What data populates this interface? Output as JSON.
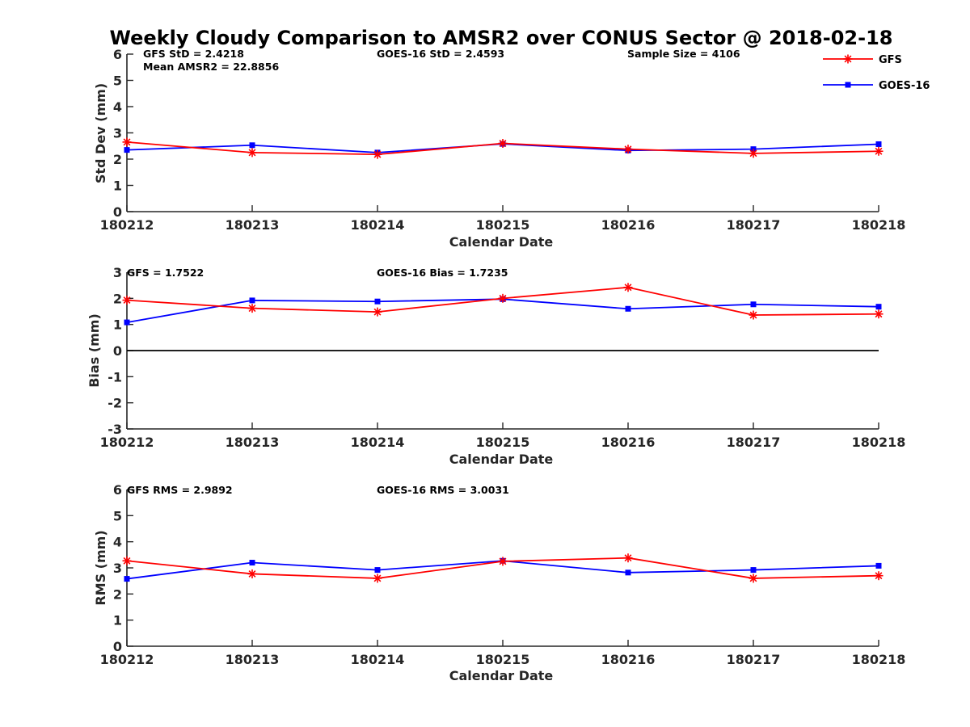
{
  "figure": {
    "title": "Weekly Cloudy Comparison to AMSR2 over CONUS Sector @ 2018-02-18",
    "legend": [
      {
        "name": "GFS",
        "color": "#ff0000",
        "marker": "asterisk"
      },
      {
        "name": "GOES-16",
        "color": "#0000ff",
        "marker": "square"
      }
    ],
    "legend_placement": "top-right"
  },
  "chart_data": [
    {
      "type": "line",
      "x": [
        "180212",
        "180213",
        "180214",
        "180215",
        "180216",
        "180217",
        "180218"
      ],
      "xlabel": "Calendar Date",
      "ylabel": "Std Dev (mm)",
      "ylim": [
        0,
        6
      ],
      "yticks": [
        "0",
        "1",
        "2",
        "3",
        "4",
        "5",
        "6"
      ],
      "grid": false,
      "series": [
        {
          "name": "GFS",
          "color": "#ff0000",
          "values": [
            2.65,
            2.25,
            2.18,
            2.6,
            2.38,
            2.22,
            2.3
          ]
        },
        {
          "name": "GOES-16",
          "color": "#0000ff",
          "values": [
            2.35,
            2.53,
            2.25,
            2.58,
            2.33,
            2.38,
            2.57
          ]
        }
      ],
      "annotations": [
        {
          "text": "GFS StD = 2.4218",
          "anchor": "tl"
        },
        {
          "text": "Mean AMSR2 = 22.8856",
          "anchor": "tl2"
        },
        {
          "text": "GOES-16 StD = 2.4593",
          "anchor": "tm"
        },
        {
          "text": "Sample Size = 4106",
          "anchor": "tr"
        }
      ]
    },
    {
      "type": "line",
      "x": [
        "180212",
        "180213",
        "180214",
        "180215",
        "180216",
        "180217",
        "180218"
      ],
      "xlabel": "Calendar Date",
      "ylabel": "Bias (mm)",
      "ylim": [
        -3,
        3
      ],
      "yticks": [
        "-3",
        "-2",
        "-1",
        "0",
        "1",
        "2",
        "3"
      ],
      "zero_line": true,
      "grid": false,
      "series": [
        {
          "name": "GFS",
          "color": "#ff0000",
          "values": [
            1.93,
            1.62,
            1.48,
            2.0,
            2.42,
            1.36,
            1.4
          ]
        },
        {
          "name": "GOES-16",
          "color": "#0000ff",
          "values": [
            1.08,
            1.92,
            1.88,
            1.97,
            1.6,
            1.77,
            1.68
          ]
        }
      ],
      "annotations": [
        {
          "text": "GFS = 1.7522",
          "anchor": "tl"
        },
        {
          "text": "GOES-16 Bias  = 1.7235",
          "anchor": "tm"
        }
      ]
    },
    {
      "type": "line",
      "x": [
        "180212",
        "180213",
        "180214",
        "180215",
        "180216",
        "180217",
        "180218"
      ],
      "xlabel": "Calendar Date",
      "ylabel": "RMS (mm)",
      "ylim": [
        0,
        6
      ],
      "yticks": [
        "0",
        "1",
        "2",
        "3",
        "4",
        "5",
        "6"
      ],
      "grid": false,
      "series": [
        {
          "name": "GFS",
          "color": "#ff0000",
          "values": [
            3.27,
            2.77,
            2.6,
            3.25,
            3.38,
            2.6,
            2.7
          ]
        },
        {
          "name": "GOES-16",
          "color": "#0000ff",
          "values": [
            2.58,
            3.2,
            2.92,
            3.27,
            2.82,
            2.92,
            3.08
          ]
        }
      ],
      "annotations": [
        {
          "text": "GFS RMS = 2.9892",
          "anchor": "tl"
        },
        {
          "text": "GOES-16 RMS = 3.0031",
          "anchor": "tm"
        }
      ]
    }
  ]
}
